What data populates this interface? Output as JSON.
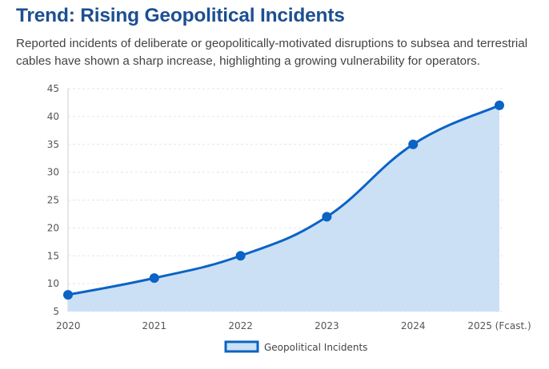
{
  "title": "Trend: Rising Geopolitical Incidents",
  "subtitle": "Reported incidents of deliberate or geopolitically-motivated disruptions to subsea and terrestrial cables have shown a sharp increase, highlighting a growing vulnerability for operators.",
  "colors": {
    "title": "#1d4f91",
    "line": "#0b63c5",
    "fill": "#cce0f5",
    "grid": "#e6e6e6"
  },
  "chart_data": {
    "type": "area",
    "categories": [
      "2020",
      "2021",
      "2022",
      "2023",
      "2024",
      "2025 (Fcast.)"
    ],
    "series": [
      {
        "name": "Geopolitical Incidents",
        "values": [
          8,
          11,
          15,
          22,
          35,
          42
        ]
      }
    ],
    "yticks": [
      "45",
      "40",
      "35",
      "30",
      "25",
      "20",
      "15",
      "10",
      "5"
    ],
    "ylim": [
      5,
      45
    ],
    "grid": true,
    "legend_position": "bottom-center"
  }
}
